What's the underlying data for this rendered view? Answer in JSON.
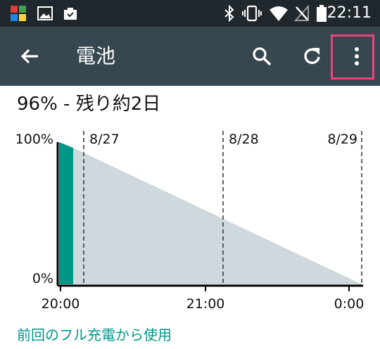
{
  "status_bar": {
    "time": "22:11",
    "icons": [
      "avg-app-icon",
      "image-icon",
      "briefcase-check-icon",
      "bluetooth-icon",
      "vibrate-icon",
      "wifi-icon",
      "no-sim-icon",
      "battery-icon"
    ]
  },
  "app_bar": {
    "title": "電池",
    "icons": [
      "back-arrow-icon",
      "search-icon",
      "refresh-icon",
      "more-vert-icon"
    ],
    "highlight_color": "#e8457e"
  },
  "battery": {
    "summary": "96% - 残り約2日"
  },
  "chart_data": {
    "type": "area",
    "title": "",
    "y_axis": {
      "labels": [
        "100%",
        "0%"
      ],
      "range": [
        0,
        100
      ],
      "unit": "%"
    },
    "x_axis": {
      "labels": [
        "20:00",
        "21:00",
        "0:00"
      ]
    },
    "day_markers": [
      "8/27",
      "8/28",
      "8/29"
    ],
    "series": [
      {
        "name": "history",
        "color": "#009688",
        "values": [
          {
            "x": "20:00",
            "y": 100
          },
          {
            "x": "20:06",
            "y": 96
          }
        ]
      },
      {
        "name": "projection",
        "color": "#cfd8dc",
        "values": [
          {
            "x": "20:06",
            "y": 96
          },
          {
            "x": "8/29 0:00",
            "y": 0
          }
        ]
      }
    ]
  },
  "footer": {
    "link": "前回のフル充電から使用"
  }
}
